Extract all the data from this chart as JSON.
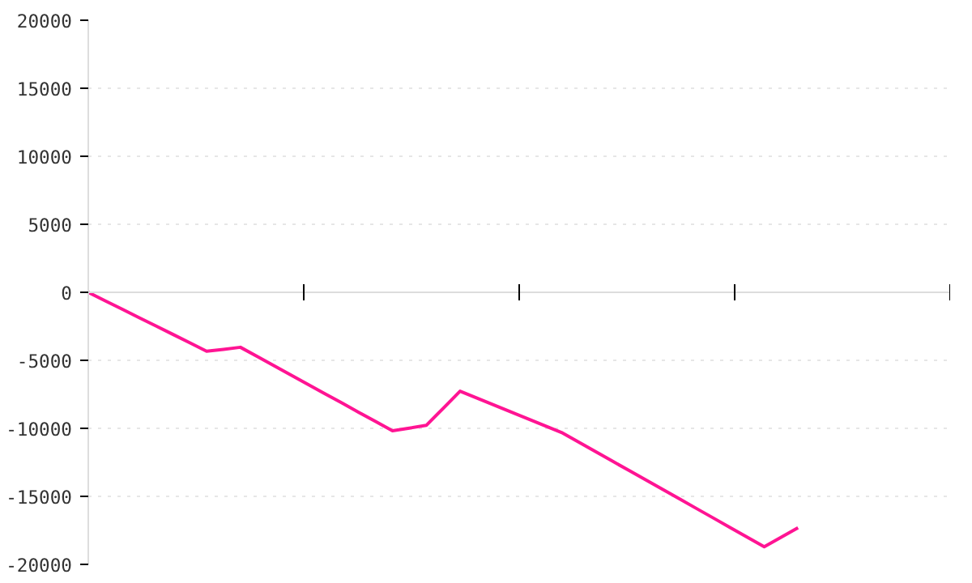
{
  "chart_data": {
    "type": "line",
    "categories": [
      null,
      null,
      null,
      null,
      null,
      null,
      null,
      null,
      null,
      null,
      null,
      null,
      null,
      null,
      null,
      null,
      null,
      null,
      null,
      null,
      null,
      null,
      null,
      null,
      null,
      null,
      null,
      null,
      null,
      null,
      null,
      null,
      null,
      null,
      null,
      null,
      null,
      null,
      null,
      null,
      null,
      null,
      null,
      null,
      null,
      null,
      null,
      null,
      null,
      null,
      null,
      null
    ],
    "series": [
      {
        "color": "#ff1493",
        "values": [
          0,
          -620,
          -1240,
          -1860,
          -2470,
          -3090,
          -3710,
          -4330,
          -4190,
          -4040,
          -4720,
          -5400,
          -6090,
          -6770,
          -7450,
          -8130,
          -8820,
          -9500,
          -10180,
          -9980,
          -9780,
          -8530,
          -7270,
          -7780,
          -8280,
          -8790,
          -9290,
          -9800,
          -10300,
          -11000,
          -11700,
          -12400,
          -13100,
          -13800,
          -14500,
          -15200,
          -15900,
          -16600,
          -17300,
          -18000,
          -18700,
          -18000,
          -17300,
          null,
          null,
          null,
          null,
          null,
          null,
          null,
          null,
          null
        ]
      }
    ],
    "ylim": [
      -20000,
      20000
    ],
    "yticks": [
      -20000,
      -15000,
      -10000,
      -5000,
      0,
      5000,
      10000,
      15000,
      20000
    ],
    "grid": "y",
    "tick_labels": "y",
    "marker": "none",
    "line_style": "solid"
  }
}
